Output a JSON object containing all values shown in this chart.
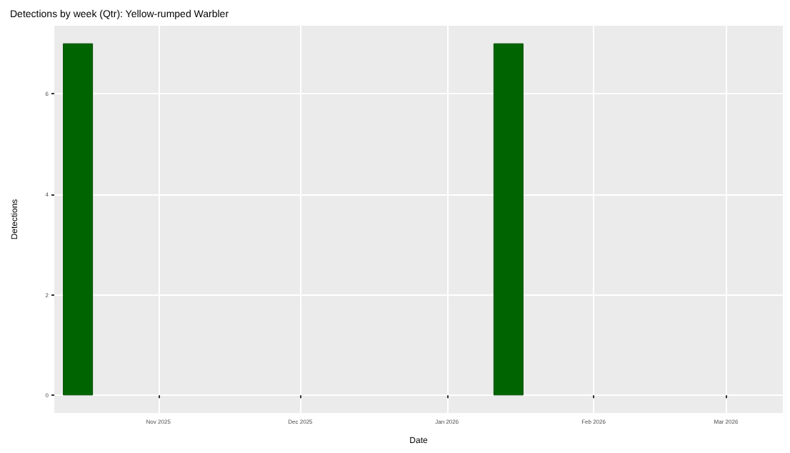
{
  "chart_data": {
    "type": "bar",
    "title": "Detections by week (Qtr): Yellow-rumped Warbler",
    "xlabel": "Date",
    "ylabel": "Detections",
    "x": [
      "2025-10-15",
      "2026-01-14"
    ],
    "values": [
      7,
      7
    ],
    "color": "#006400",
    "xlim": [
      "2025-10-10",
      "2026-03-13"
    ],
    "xticks": [
      {
        "value": "2025-11-01",
        "label": "Nov 2025"
      },
      {
        "value": "2025-12-01",
        "label": "Dec 2025"
      },
      {
        "value": "2026-01-01",
        "label": "Jan 2026"
      },
      {
        "value": "2026-02-01",
        "label": "Feb 2026"
      },
      {
        "value": "2026-03-01",
        "label": "Mar 2026"
      }
    ],
    "ylim": [
      -0.35,
      7.35
    ],
    "yticks": [
      0,
      2,
      4,
      6
    ],
    "grid": true
  }
}
